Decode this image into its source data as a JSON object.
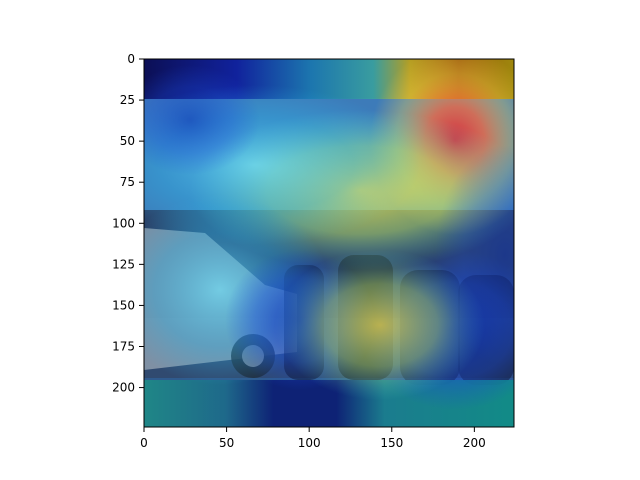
{
  "figure": {
    "kind": "heatmap-overlay-on-photo",
    "photo_description_hidden": true
  },
  "chart_data": {
    "type": "heatmap",
    "title": "",
    "xlabel": "",
    "ylabel": "",
    "xlim": [
      0,
      224
    ],
    "ylim": [
      224,
      0
    ],
    "x_ticks": [
      "0",
      "50",
      "100",
      "150",
      "200"
    ],
    "y_ticks": [
      "0",
      "25",
      "50",
      "75",
      "100",
      "125",
      "150",
      "175",
      "200"
    ],
    "colormap": "jet",
    "grid": false,
    "legend": "none",
    "colors": {
      "background": "#ffffff",
      "axis": "#000000"
    }
  }
}
